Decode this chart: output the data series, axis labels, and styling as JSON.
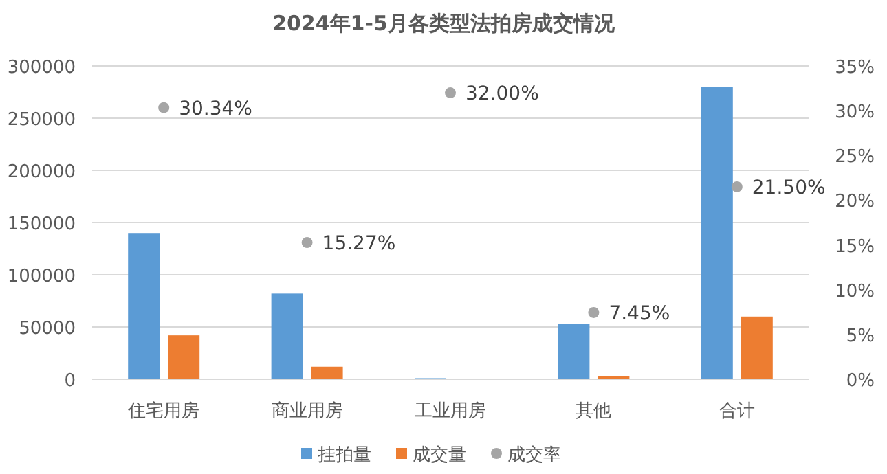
{
  "chart_data": {
    "type": "bar",
    "title": "2024年1-5月各类型法拍房成交情况",
    "categories": [
      "住宅用房",
      "商业用房",
      "工业用房",
      "其他",
      "合计"
    ],
    "series": [
      {
        "name": "挂拍量",
        "color": "#5b9bd5",
        "values": [
          140000,
          82000,
          1000,
          53000,
          280000
        ]
      },
      {
        "name": "成交量",
        "color": "#ed7d31",
        "values": [
          42000,
          12000,
          0,
          3000,
          60000
        ]
      },
      {
        "name": "成交率",
        "type": "scatter",
        "axis": "y2",
        "color": "#a5a5a5",
        "values": [
          30.34,
          15.27,
          32.0,
          7.45,
          21.5
        ],
        "value_labels": [
          "30.34%",
          "15.27%",
          "32.00%",
          "7.45%",
          "21.50%"
        ]
      }
    ],
    "ylim": [
      0,
      300000
    ],
    "yticks": [
      0,
      50000,
      100000,
      150000,
      200000,
      250000,
      300000
    ],
    "y2lim": [
      0,
      35
    ],
    "y2ticks": [
      {
        "value": 0,
        "label": "0%"
      },
      {
        "value": 5,
        "label": "5%"
      },
      {
        "value": 10,
        "label": "10%"
      },
      {
        "value": 15,
        "label": "15%"
      },
      {
        "value": 20,
        "label": "20%"
      },
      {
        "value": 25,
        "label": "25%"
      },
      {
        "value": 30,
        "label": "30%"
      },
      {
        "value": 35,
        "label": "35%"
      }
    ],
    "grid": "y",
    "legend": "bottom",
    "marker": "circle"
  }
}
